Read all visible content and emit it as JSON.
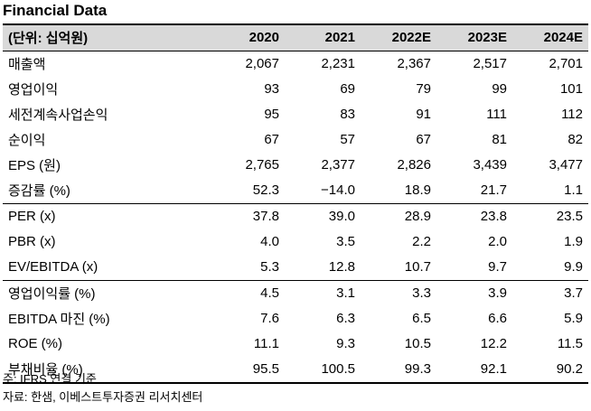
{
  "title": "Financial Data",
  "table": {
    "headers": [
      "(단위: 십억원)",
      "2020",
      "2021",
      "2022E",
      "2023E",
      "2024E"
    ],
    "rows": [
      {
        "label": "매출액",
        "values": [
          "2,067",
          "2,231",
          "2,367",
          "2,517",
          "2,701"
        ]
      },
      {
        "label": "영업이익",
        "values": [
          "93",
          "69",
          "79",
          "99",
          "101"
        ]
      },
      {
        "label": "세전계속사업손익",
        "values": [
          "95",
          "83",
          "91",
          "111",
          "112"
        ]
      },
      {
        "label": "순이익",
        "values": [
          "67",
          "57",
          "67",
          "81",
          "82"
        ]
      },
      {
        "label": "EPS (원)",
        "values": [
          "2,765",
          "2,377",
          "2,826",
          "3,439",
          "3,477"
        ]
      },
      {
        "label": "증감률 (%)",
        "values": [
          "52.3",
          "−14.0",
          "18.9",
          "21.7",
          "1.1"
        ]
      },
      {
        "label": "PER (x)",
        "values": [
          "37.8",
          "39.0",
          "28.9",
          "23.8",
          "23.5"
        ]
      },
      {
        "label": "PBR (x)",
        "values": [
          "4.0",
          "3.5",
          "2.2",
          "2.0",
          "1.9"
        ]
      },
      {
        "label": "EV/EBITDA (x)",
        "values": [
          "5.3",
          "12.8",
          "10.7",
          "9.7",
          "9.9"
        ]
      },
      {
        "label": "영업이익률 (%)",
        "values": [
          "4.5",
          "3.1",
          "3.3",
          "3.9",
          "3.7"
        ]
      },
      {
        "label": "EBITDA 마진 (%)",
        "values": [
          "7.6",
          "6.3",
          "6.5",
          "6.6",
          "5.9"
        ]
      },
      {
        "label": "ROE (%)",
        "values": [
          "11.1",
          "9.3",
          "10.5",
          "12.2",
          "11.5"
        ]
      },
      {
        "label": "부채비율 (%)",
        "values": [
          "95.5",
          "100.5",
          "99.3",
          "92.1",
          "90.2"
        ]
      }
    ]
  },
  "notes": {
    "note": "주: IFRS 연결 기준",
    "source": "자료: 한샘, 이베스트투자증권 리서치센터"
  }
}
